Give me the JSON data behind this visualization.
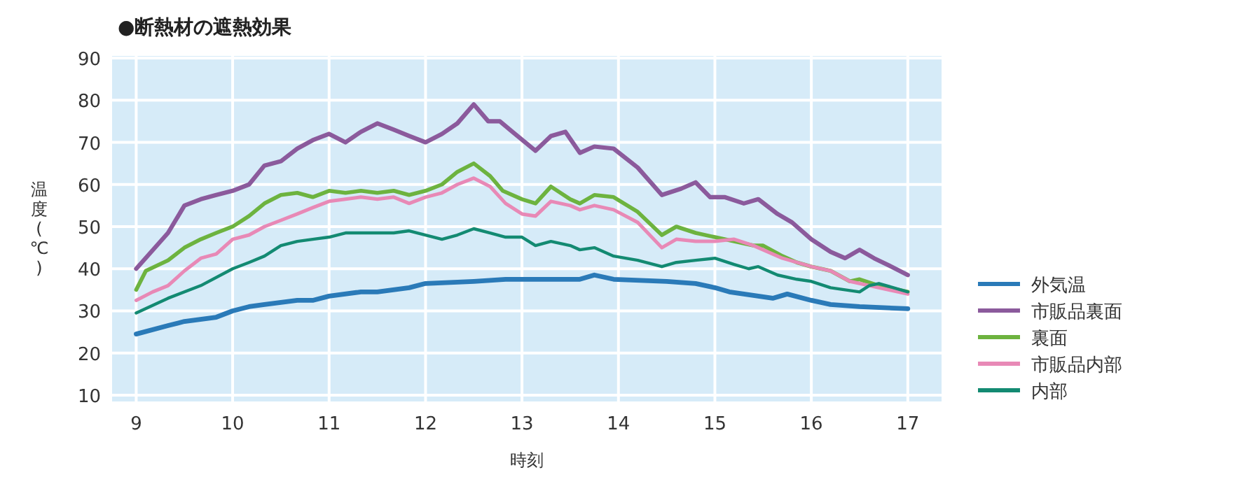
{
  "chart_data": {
    "type": "line",
    "title": "●断熱材の遮熱効果",
    "xlabel": "時刻",
    "ylabel": "温度(℃)",
    "xlim": [
      8.75,
      17.35
    ],
    "ylim": [
      8.5,
      90.5
    ],
    "xticks": [
      9,
      10,
      11,
      12,
      13,
      14,
      15,
      16,
      17
    ],
    "yticks": [
      10,
      20,
      30,
      40,
      50,
      60,
      70,
      80,
      90
    ],
    "grid": true,
    "legend": "right",
    "marker": "none",
    "line_style": "solid",
    "series": [
      {
        "name": "外気温",
        "color": "#2a7ab8",
        "x": [
          9,
          9.33,
          9.5,
          9.83,
          10,
          10.17,
          10.33,
          10.67,
          10.83,
          11,
          11.33,
          11.5,
          11.83,
          12,
          12.5,
          12.83,
          13.0,
          13.6,
          13.75,
          13.95,
          14.5,
          14.8,
          15.0,
          15.15,
          15.45,
          15.6,
          15.75,
          16,
          16.2,
          16.5,
          17
        ],
        "values": [
          24.5,
          26.5,
          27.5,
          28.5,
          30,
          31,
          31.5,
          32.5,
          32.5,
          33.5,
          34.5,
          34.5,
          35.5,
          36.5,
          37,
          37.5,
          37.5,
          37.5,
          38.5,
          37.5,
          37,
          36.5,
          35.5,
          34.5,
          33.5,
          33,
          34,
          32.5,
          31.5,
          31,
          30.5
        ]
      },
      {
        "name": "市販品裏面",
        "color": "#8b5a9c",
        "x": [
          9,
          9.33,
          9.5,
          9.67,
          9.83,
          10,
          10.17,
          10.33,
          10.5,
          10.67,
          10.83,
          11,
          11.17,
          11.33,
          11.5,
          11.67,
          11.83,
          12,
          12.17,
          12.33,
          12.5,
          12.65,
          12.77,
          12.9,
          13.14,
          13.3,
          13.45,
          13.6,
          13.75,
          13.95,
          14.2,
          14.45,
          14.65,
          14.8,
          14.95,
          15.1,
          15.3,
          15.45,
          15.65,
          15.8,
          16,
          16.2,
          16.35,
          16.5,
          16.65,
          16.83,
          17
        ],
        "values": [
          40,
          48.5,
          55,
          56.5,
          57.5,
          58.5,
          60,
          64.5,
          65.5,
          68.5,
          70.5,
          72,
          70,
          72.5,
          74.5,
          73,
          71.5,
          70,
          72,
          74.5,
          79,
          75,
          75,
          72.5,
          68,
          71.5,
          72.5,
          67.5,
          69,
          68.5,
          64,
          57.5,
          59,
          60.5,
          57,
          57,
          55.5,
          56.5,
          53,
          51,
          47,
          44,
          42.5,
          44.5,
          42.5,
          40.5,
          38.5
        ]
      },
      {
        "name": "裏面",
        "color": "#6db33f",
        "x": [
          9,
          9.1,
          9.33,
          9.5,
          9.67,
          9.83,
          10,
          10.17,
          10.33,
          10.5,
          10.67,
          10.83,
          11,
          11.17,
          11.33,
          11.5,
          11.67,
          11.83,
          12,
          12.17,
          12.33,
          12.5,
          12.67,
          12.8,
          13.0,
          13.14,
          13.3,
          13.5,
          13.6,
          13.75,
          13.95,
          14.2,
          14.45,
          14.6,
          14.8,
          15.0,
          15.2,
          15.4,
          15.5,
          15.7,
          15.85,
          16,
          16.2,
          16.4,
          16.5,
          16.7,
          17
        ],
        "values": [
          35,
          39.5,
          42,
          45,
          47,
          48.5,
          50,
          52.5,
          55.5,
          57.5,
          58,
          57,
          58.5,
          58,
          58.5,
          58,
          58.5,
          57.5,
          58.5,
          60,
          63,
          65,
          62,
          58.5,
          56.5,
          55.5,
          59.5,
          56.5,
          55.5,
          57.5,
          57,
          53.5,
          48,
          50,
          48.5,
          47.5,
          46.5,
          45.5,
          45.5,
          43,
          41.5,
          40.5,
          39.5,
          37,
          37.5,
          36,
          34.5
        ]
      },
      {
        "name": "市販品内部",
        "color": "#e889b6",
        "x": [
          9,
          9.17,
          9.33,
          9.5,
          9.67,
          9.83,
          10,
          10.17,
          10.33,
          10.5,
          10.67,
          10.83,
          11,
          11.17,
          11.33,
          11.5,
          11.67,
          11.83,
          12,
          12.17,
          12.33,
          12.5,
          12.67,
          12.83,
          13.0,
          13.14,
          13.3,
          13.5,
          13.6,
          13.75,
          13.95,
          14.2,
          14.45,
          14.6,
          14.8,
          15.0,
          15.2,
          15.4,
          15.7,
          16,
          16.2,
          16.4,
          16.7,
          17
        ],
        "values": [
          32.5,
          34.5,
          36,
          39.5,
          42.5,
          43.5,
          47,
          48,
          50,
          51.5,
          53,
          54.5,
          56,
          56.5,
          57,
          56.5,
          57,
          55.5,
          57,
          58,
          60,
          61.5,
          59.5,
          55.5,
          53,
          52.5,
          56,
          55,
          54,
          55,
          54,
          51,
          45,
          47,
          46.5,
          46.5,
          47,
          45.5,
          42.5,
          40.5,
          39.5,
          37,
          35.5,
          34
        ]
      },
      {
        "name": "内部",
        "color": "#138a72",
        "x": [
          9,
          9.33,
          9.67,
          10,
          10.17,
          10.33,
          10.5,
          10.67,
          10.83,
          11,
          11.17,
          11.5,
          11.67,
          11.83,
          12,
          12.17,
          12.33,
          12.5,
          12.67,
          12.83,
          13.0,
          13.14,
          13.3,
          13.5,
          13.6,
          13.75,
          13.95,
          14.2,
          14.45,
          14.6,
          14.8,
          15.0,
          15.2,
          15.35,
          15.45,
          15.65,
          15.85,
          16,
          16.2,
          16.5,
          16.6,
          16.7,
          17
        ],
        "values": [
          29.5,
          33,
          36,
          40,
          41.5,
          43,
          45.5,
          46.5,
          47,
          47.5,
          48.5,
          48.5,
          48.5,
          49,
          48,
          47,
          48,
          49.5,
          48.5,
          47.5,
          47.5,
          45.5,
          46.5,
          45.5,
          44.5,
          45,
          43,
          42,
          40.5,
          41.5,
          42,
          42.5,
          41,
          40,
          40.5,
          38.5,
          37.5,
          37,
          35.5,
          34.5,
          36,
          36.5,
          34.5
        ]
      }
    ]
  }
}
